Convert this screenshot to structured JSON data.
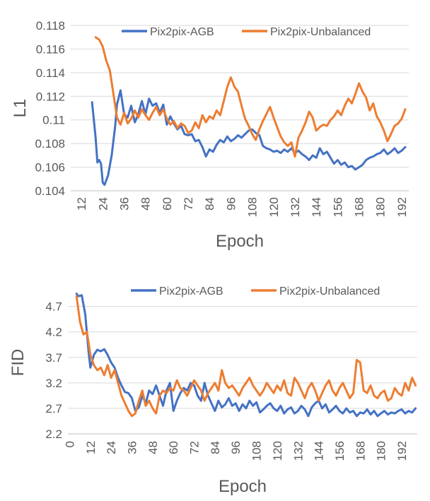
{
  "chart_data": [
    {
      "type": "line",
      "title": "",
      "xlabel": "Epoch",
      "ylabel": "L1",
      "ylim": [
        0.104,
        0.118
      ],
      "yticks": [
        "0.104",
        "0.106",
        "0.108",
        "0.11",
        "0.112",
        "0.114",
        "0.116",
        "0.118"
      ],
      "xticks": [
        12,
        24,
        36,
        48,
        60,
        72,
        84,
        96,
        108,
        120,
        132,
        144,
        156,
        168,
        180,
        192
      ],
      "xlim": [
        6,
        196
      ],
      "legend_position": "top",
      "grid": true,
      "series": [
        {
          "name": "Pix2pix-AGB",
          "color": "#4472C4",
          "x": [
            18,
            20,
            21,
            22,
            23,
            24,
            25,
            27,
            29,
            31,
            32,
            34,
            36,
            38,
            40,
            42,
            44,
            46,
            48,
            50,
            52,
            54,
            56,
            58,
            60,
            62,
            64,
            66,
            68,
            70,
            72,
            74,
            76,
            78,
            80,
            82,
            84,
            86,
            88,
            90,
            92,
            94,
            96,
            98,
            100,
            102,
            104,
            106,
            108,
            110,
            112,
            114,
            116,
            118,
            120,
            122,
            124,
            126,
            128,
            130,
            132,
            134,
            136,
            138,
            140,
            142,
            144,
            146,
            148,
            150,
            152,
            154,
            156,
            158,
            160,
            162,
            164,
            166,
            168,
            170,
            172,
            174,
            176,
            178,
            180,
            182,
            184,
            186,
            188,
            190,
            192,
            194
          ],
          "values": [
            0.1115,
            0.1085,
            0.1064,
            0.1066,
            0.1063,
            0.1047,
            0.1045,
            0.1053,
            0.107,
            0.1095,
            0.1113,
            0.1125,
            0.1105,
            0.1102,
            0.1112,
            0.1098,
            0.1105,
            0.1116,
            0.1105,
            0.1118,
            0.1112,
            0.1114,
            0.1106,
            0.1113,
            0.1096,
            0.1103,
            0.1097,
            0.1092,
            0.1095,
            0.1088,
            0.1087,
            0.1088,
            0.1082,
            0.1083,
            0.1077,
            0.1069,
            0.1075,
            0.1073,
            0.1079,
            0.1083,
            0.1081,
            0.1086,
            0.1082,
            0.1084,
            0.1087,
            0.1085,
            0.1088,
            0.1091,
            0.1092,
            0.1089,
            0.1087,
            0.1078,
            0.1076,
            0.1075,
            0.1073,
            0.1074,
            0.1072,
            0.1075,
            0.1073,
            0.1076,
            0.1072,
            0.1074,
            0.1071,
            0.1069,
            0.1066,
            0.107,
            0.1068,
            0.1076,
            0.1071,
            0.1073,
            0.1068,
            0.1063,
            0.1066,
            0.1062,
            0.1064,
            0.106,
            0.1061,
            0.1058,
            0.106,
            0.1062,
            0.1066,
            0.1068,
            0.1069,
            0.1071,
            0.1072,
            0.1075,
            0.1071,
            0.1073,
            0.1076,
            0.1072,
            0.1074,
            0.1077
          ]
        },
        {
          "name": "Pix2pix-Unbalanced",
          "color": "#ED7D31",
          "x": [
            20,
            22,
            24,
            26,
            28,
            30,
            32,
            34,
            36,
            38,
            40,
            42,
            44,
            46,
            48,
            50,
            52,
            54,
            56,
            58,
            60,
            62,
            64,
            66,
            68,
            70,
            72,
            74,
            76,
            78,
            80,
            82,
            84,
            86,
            88,
            90,
            92,
            94,
            96,
            98,
            100,
            102,
            104,
            106,
            108,
            110,
            112,
            114,
            116,
            118,
            120,
            122,
            124,
            126,
            128,
            130,
            132,
            134,
            136,
            138,
            140,
            142,
            144,
            146,
            148,
            150,
            152,
            154,
            156,
            158,
            160,
            162,
            164,
            166,
            168,
            170,
            172,
            174,
            176,
            178,
            180,
            182,
            184,
            186,
            188,
            190,
            192,
            194
          ],
          "values": [
            0.117,
            0.1168,
            0.1162,
            0.115,
            0.1142,
            0.1122,
            0.1102,
            0.1096,
            0.1106,
            0.1097,
            0.1101,
            0.1108,
            0.1102,
            0.1109,
            0.1104,
            0.11,
            0.1106,
            0.1111,
            0.1104,
            0.1109,
            0.1101,
            0.1096,
            0.1099,
            0.1093,
            0.1097,
            0.1095,
            0.1089,
            0.1091,
            0.1098,
            0.1093,
            0.1104,
            0.1098,
            0.1103,
            0.1101,
            0.1108,
            0.1104,
            0.1116,
            0.1128,
            0.1136,
            0.1128,
            0.1124,
            0.1112,
            0.1101,
            0.1095,
            0.1088,
            0.1083,
            0.1092,
            0.1099,
            0.1105,
            0.1111,
            0.1102,
            0.1094,
            0.1086,
            0.1081,
            0.1078,
            0.1081,
            0.1069,
            0.1085,
            0.1091,
            0.1098,
            0.1107,
            0.1102,
            0.1091,
            0.1094,
            0.1096,
            0.1095,
            0.11,
            0.1103,
            0.1108,
            0.1104,
            0.1112,
            0.1118,
            0.1114,
            0.1122,
            0.1131,
            0.1124,
            0.1119,
            0.1108,
            0.1114,
            0.1103,
            0.1098,
            0.1091,
            0.1082,
            0.1088,
            0.1095,
            0.1097,
            0.1101,
            0.1109
          ]
        }
      ]
    },
    {
      "type": "line",
      "title": "",
      "xlabel": "Epoch",
      "ylabel": "FID",
      "ylim": [
        2.2,
        5.0
      ],
      "yticks": [
        "2.2",
        "2.7",
        "3.2",
        "3.7",
        "4.2",
        "4.7"
      ],
      "xticks": [
        0,
        12,
        24,
        36,
        48,
        60,
        72,
        84,
        96,
        108,
        120,
        132,
        144,
        156,
        168,
        180,
        192
      ],
      "xlim": [
        -1,
        201
      ],
      "legend_position": "top",
      "grid": true,
      "series": [
        {
          "name": "Pix2pix-AGB",
          "color": "#4472C4",
          "x": [
            4,
            5,
            7,
            9,
            11,
            12,
            14,
            16,
            18,
            20,
            22,
            24,
            26,
            28,
            30,
            32,
            34,
            36,
            38,
            40,
            42,
            44,
            46,
            48,
            50,
            52,
            54,
            56,
            58,
            60,
            62,
            64,
            66,
            68,
            70,
            72,
            74,
            76,
            78,
            80,
            82,
            84,
            86,
            88,
            90,
            92,
            94,
            96,
            98,
            100,
            102,
            104,
            106,
            108,
            110,
            112,
            114,
            116,
            118,
            120,
            122,
            124,
            126,
            128,
            130,
            132,
            134,
            136,
            138,
            140,
            142,
            144,
            146,
            148,
            150,
            152,
            154,
            156,
            158,
            160,
            162,
            164,
            166,
            168,
            170,
            172,
            174,
            176,
            178,
            180,
            182,
            184,
            186,
            188,
            190,
            192,
            194,
            196,
            198,
            200
          ],
          "values": [
            4.95,
            4.9,
            4.92,
            4.55,
            3.8,
            3.5,
            3.75,
            3.85,
            3.82,
            3.86,
            3.75,
            3.6,
            3.5,
            3.3,
            3.15,
            3.02,
            3.0,
            2.9,
            2.65,
            2.72,
            2.95,
            2.8,
            3.05,
            2.98,
            3.15,
            2.95,
            2.75,
            3.05,
            3.2,
            2.65,
            2.85,
            3.0,
            3.1,
            3.05,
            3.2,
            3.15,
            2.95,
            2.85,
            3.2,
            2.95,
            2.8,
            2.65,
            2.85,
            2.72,
            2.78,
            2.9,
            2.75,
            2.8,
            2.65,
            2.78,
            2.7,
            2.85,
            2.75,
            2.82,
            2.62,
            2.68,
            2.75,
            2.8,
            2.7,
            2.65,
            2.75,
            2.6,
            2.68,
            2.72,
            2.6,
            2.65,
            2.75,
            2.68,
            2.55,
            2.72,
            2.8,
            2.85,
            2.7,
            2.78,
            2.62,
            2.68,
            2.75,
            2.65,
            2.6,
            2.7,
            2.62,
            2.65,
            2.55,
            2.62,
            2.6,
            2.68,
            2.58,
            2.65,
            2.55,
            2.6,
            2.65,
            2.58,
            2.62,
            2.6,
            2.65,
            2.68,
            2.6,
            2.65,
            2.62,
            2.7
          ]
        },
        {
          "name": "Pix2pix-Unbalanced",
          "color": "#ED7D31",
          "x": [
            4,
            6,
            8,
            10,
            12,
            14,
            16,
            18,
            20,
            22,
            24,
            26,
            28,
            30,
            32,
            34,
            36,
            38,
            40,
            42,
            44,
            46,
            48,
            50,
            52,
            54,
            56,
            58,
            60,
            62,
            64,
            66,
            68,
            70,
            72,
            74,
            76,
            78,
            80,
            82,
            84,
            86,
            88,
            90,
            92,
            94,
            96,
            98,
            100,
            102,
            104,
            106,
            108,
            110,
            112,
            114,
            116,
            118,
            120,
            122,
            124,
            126,
            128,
            130,
            132,
            134,
            136,
            138,
            140,
            142,
            144,
            146,
            148,
            150,
            152,
            154,
            156,
            158,
            160,
            162,
            164,
            166,
            168,
            170,
            172,
            174,
            176,
            178,
            180,
            182,
            184,
            186,
            188,
            190,
            192,
            194,
            196,
            198,
            200
          ],
          "values": [
            4.9,
            4.4,
            4.15,
            4.2,
            3.75,
            3.55,
            3.45,
            3.5,
            3.35,
            3.55,
            3.3,
            3.45,
            3.2,
            2.95,
            2.8,
            2.65,
            2.55,
            2.6,
            2.85,
            3.05,
            2.75,
            2.85,
            2.7,
            2.6,
            2.95,
            3.05,
            3.0,
            3.1,
            3.05,
            3.25,
            3.1,
            3.05,
            2.95,
            3.1,
            3.25,
            3.15,
            3.05,
            2.85,
            3.0,
            3.1,
            3.2,
            3.05,
            3.45,
            3.2,
            3.1,
            3.15,
            3.05,
            2.95,
            3.1,
            3.2,
            3.3,
            3.15,
            3.05,
            2.95,
            3.05,
            3.2,
            3.1,
            3.0,
            3.15,
            3.05,
            3.25,
            3.0,
            2.95,
            3.3,
            3.2,
            3.05,
            2.9,
            3.1,
            3.2,
            3.05,
            2.85,
            3.0,
            3.15,
            3.25,
            3.05,
            2.95,
            3.1,
            3.2,
            3.05,
            2.9,
            3.0,
            3.65,
            3.6,
            3.05,
            3.0,
            3.15,
            2.95,
            2.9,
            3.0,
            3.05,
            2.85,
            2.9,
            3.1,
            3.0,
            2.95,
            3.2,
            3.05,
            3.3,
            3.15
          ]
        }
      ]
    }
  ]
}
